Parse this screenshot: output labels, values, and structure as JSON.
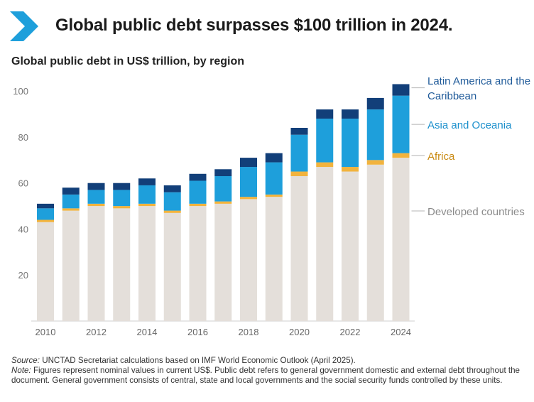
{
  "header": {
    "title": "Global public debt surpasses $100 trillion in 2024.",
    "logo_icon": "chevron-right-icon"
  },
  "colors": {
    "developed": "#e4dfda",
    "africa": "#f2b33d",
    "asia": "#1e9fdb",
    "latam": "#123f79",
    "label_blue": "#1f5a99",
    "label_asia": "#1a8fcc",
    "label_africa": "#c98a12",
    "label_gray": "#8a8a8a",
    "logo": "#1e9fdb"
  },
  "chart_data": {
    "type": "bar",
    "stacked": true,
    "title": "Global public debt in US$ trillion, by region",
    "xlabel": "",
    "ylabel": "",
    "ylim": [
      0,
      105
    ],
    "yticks": [
      20,
      40,
      60,
      80,
      100
    ],
    "categories": [
      "2010",
      "2011",
      "2012",
      "2013",
      "2014",
      "2015",
      "2016",
      "2017",
      "2018",
      "2019",
      "2020",
      "2021",
      "2022",
      "2023",
      "2024"
    ],
    "xtick_labels": [
      "2010",
      "2012",
      "2014",
      "2016",
      "2018",
      "2020",
      "2022",
      "2024"
    ],
    "series": [
      {
        "name": "Developed countries",
        "color_key": "developed",
        "values": [
          43,
          48,
          50,
          49,
          50,
          47,
          50,
          51,
          53,
          54,
          63,
          67,
          65,
          68,
          71
        ]
      },
      {
        "name": "Africa",
        "color_key": "africa",
        "values": [
          1,
          1,
          1,
          1,
          1,
          1,
          1,
          1,
          1,
          1,
          2,
          2,
          2,
          2,
          2
        ]
      },
      {
        "name": "Asia and Oceania",
        "color_key": "asia",
        "values": [
          5,
          6,
          6,
          7,
          8,
          8,
          10,
          11,
          13,
          14,
          16,
          19,
          21,
          22,
          25
        ]
      },
      {
        "name": "Latin America and the Caribbean",
        "color_key": "latam",
        "values": [
          2,
          3,
          3,
          3,
          3,
          3,
          3,
          3,
          4,
          4,
          3,
          4,
          4,
          5,
          5
        ]
      }
    ],
    "legend_labels": [
      {
        "series": "Latin America and the Caribbean",
        "lines": [
          "Latin America and the",
          "Caribbean"
        ],
        "color_key": "label_blue"
      },
      {
        "series": "Asia and Oceania",
        "lines": [
          "Asia and Oceania"
        ],
        "color_key": "label_asia"
      },
      {
        "series": "Africa",
        "lines": [
          "Africa"
        ],
        "color_key": "label_africa"
      },
      {
        "series": "Developed countries",
        "lines": [
          "Developed countries"
        ],
        "color_key": "label_gray"
      }
    ]
  },
  "footer": {
    "source_label": "Source:",
    "source_text": " UNCTAD Secretariat calculations based on IMF World Economic Outlook (April 2025).",
    "note_label": "Note:",
    "note_text": " Figures represent nominal values in current US$. Public debt refers to general government domestic and external debt throughout the document. General government consists of central, state and local governments and the social security funds controlled by these units."
  }
}
